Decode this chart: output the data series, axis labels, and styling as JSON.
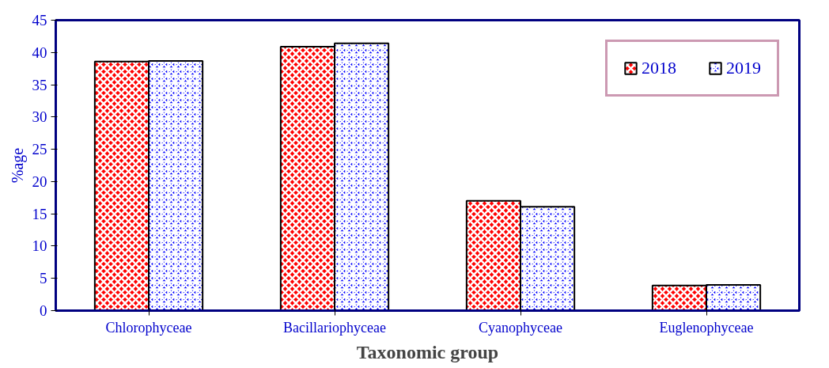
{
  "chart_data": {
    "type": "bar",
    "xlabel": "Taxonomic group",
    "ylabel": "%age",
    "categories": [
      "Chlorophyceae",
      "Bacillariophyceae",
      "Cyanophyceae",
      "Euglenophyceae"
    ],
    "series": [
      {
        "name": "2018",
        "color": "#ff0000",
        "values": [
          38.6,
          40.9,
          17.0,
          3.9
        ]
      },
      {
        "name": "2019",
        "color": "#0000ff",
        "values": [
          38.7,
          41.4,
          16.1,
          4.0
        ]
      }
    ],
    "ylim": [
      0,
      45
    ],
    "yticks": [
      0,
      5,
      10,
      15,
      20,
      25,
      30,
      35,
      40,
      45
    ],
    "grid": false,
    "legend": "top right"
  }
}
